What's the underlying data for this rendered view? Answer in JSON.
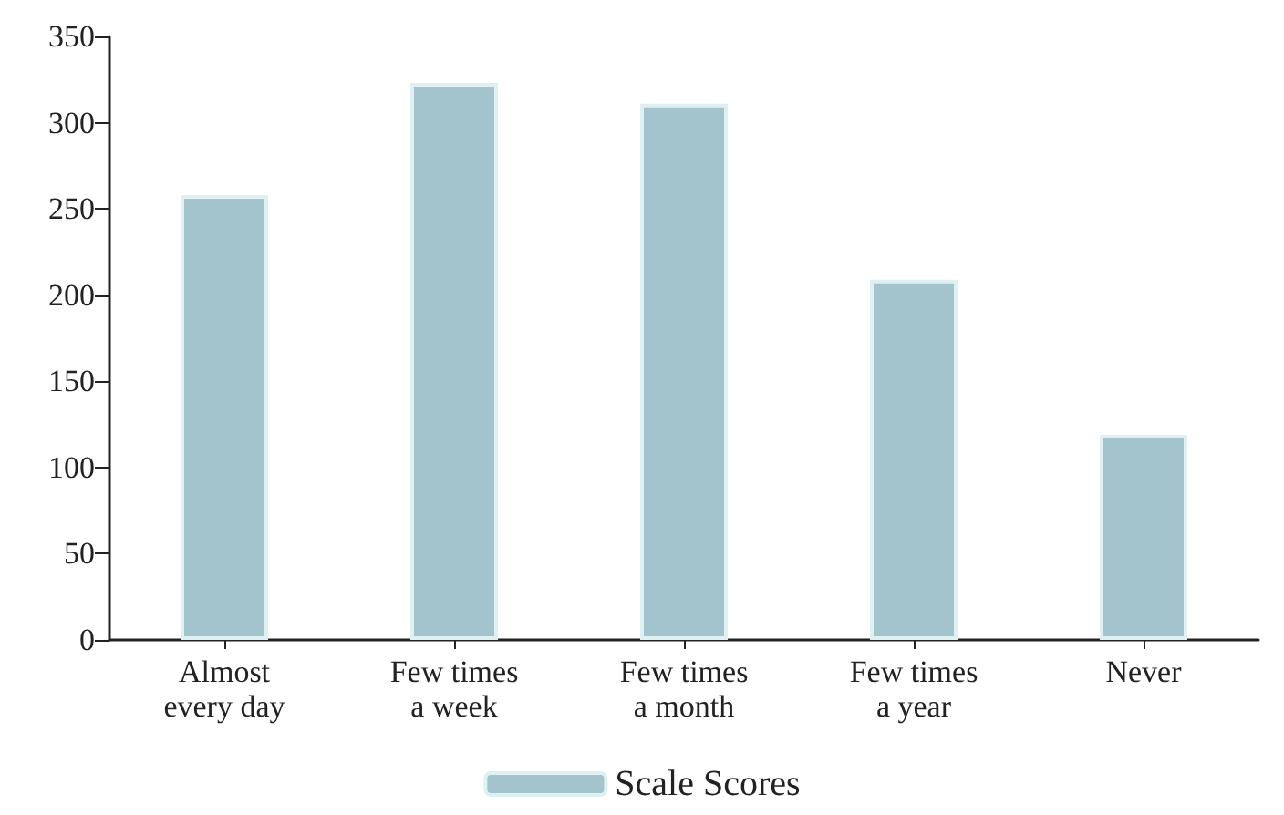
{
  "chart_data": {
    "type": "bar",
    "categories": [
      "Almost\nevery day",
      "Few times\na week",
      "Few times\na month",
      "Few times\na year",
      "Never"
    ],
    "series": [
      {
        "name": "Scale Scores",
        "color": "#a3c4cc",
        "values": [
          258,
          323,
          311,
          209,
          119
        ]
      }
    ],
    "ylim": [
      0,
      350
    ],
    "yticks": [
      0,
      50,
      100,
      150,
      200,
      250,
      300,
      350
    ],
    "grid": false,
    "legend": "bottom"
  }
}
